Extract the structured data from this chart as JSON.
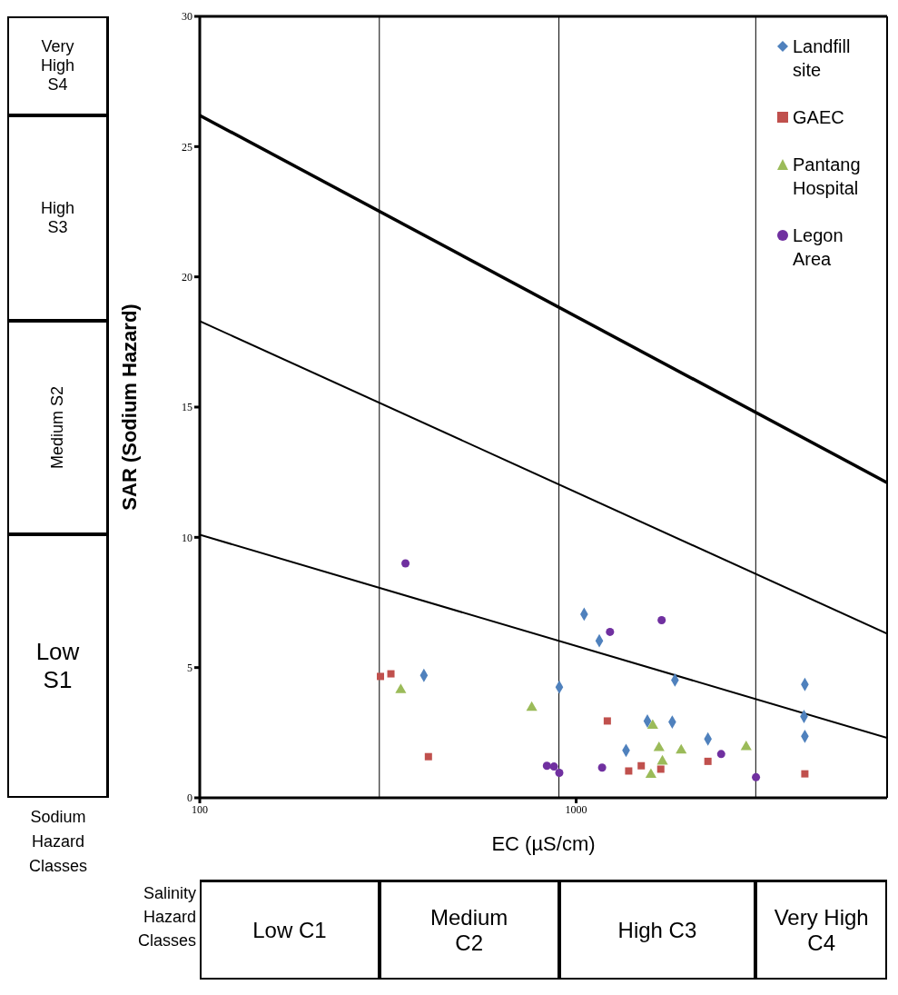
{
  "chart_data": {
    "type": "scatter",
    "xlabel": "EC (µS/cm)",
    "ylabel": "SAR (Sodium Hazard)",
    "log": "x",
    "xlim": [
      100,
      6700
    ],
    "xticks": [
      100,
      1000
    ],
    "ylim": [
      0,
      30
    ],
    "yticks": [
      0,
      5,
      10,
      15,
      20,
      25,
      30
    ],
    "legend": "top right",
    "series": [
      {
        "name": "Landfill site",
        "color": "#4f81bd",
        "marker": "diamond",
        "x": [
          394,
          902,
          1050,
          1152,
          1357,
          1546,
          1800,
          1830,
          2239,
          4051,
          4030,
          4051
        ],
        "values": [
          4.7,
          4.25,
          7.05,
          6.03,
          1.82,
          2.95,
          2.91,
          4.52,
          2.26,
          4.35,
          3.12,
          2.36
        ]
      },
      {
        "name": "GAEC",
        "color": "#c0504d",
        "marker": "square",
        "x": [
          302,
          322,
          405,
          1210,
          1379,
          1489,
          1678,
          2239,
          4051
        ],
        "values": [
          4.66,
          4.76,
          1.58,
          2.95,
          1.03,
          1.23,
          1.1,
          1.4,
          0.92
        ]
      },
      {
        "name": "Pantang Hospital",
        "color": "#9bbb59",
        "marker": "triangle",
        "x": [
          342,
          762,
          1580,
          1597,
          1660,
          1695,
          1901,
          2829
        ],
        "values": [
          4.14,
          3.46,
          0.89,
          2.77,
          1.92,
          1.4,
          1.82,
          1.95
        ]
      },
      {
        "name": "Legon Area",
        "color": "#7030a0",
        "marker": "circle",
        "x": [
          352,
          836,
          873,
          902,
          1172,
          1230,
          1687,
          2428,
          3004
        ],
        "values": [
          9.0,
          1.23,
          1.2,
          0.96,
          1.16,
          6.37,
          6.82,
          1.68,
          0.79
        ]
      },
      {
        "type": "line",
        "color": "#000000",
        "x": [
          100,
          6700
        ],
        "values": [
          26.2,
          12.1
        ]
      },
      {
        "type": "line",
        "color": "#000000",
        "x": [
          100,
          6700
        ],
        "values": [
          18.3,
          6.3
        ]
      },
      {
        "type": "line",
        "color": "#000000",
        "x": [
          100,
          6700
        ],
        "values": [
          10.1,
          2.3
        ]
      }
    ],
    "ref_lines": [
      {
        "axis": "x",
        "value": 300
      },
      {
        "axis": "x",
        "value": 900
      },
      {
        "axis": "x",
        "value": 3000
      }
    ],
    "annotations": [
      "Very High S4",
      "High S3",
      "Medium S2",
      "Low S1",
      "Sodium Hazard Classes",
      "Low C1",
      "Medium C2",
      "High C3",
      "Very High C4",
      "Salinity Hazard Classes"
    ]
  }
}
